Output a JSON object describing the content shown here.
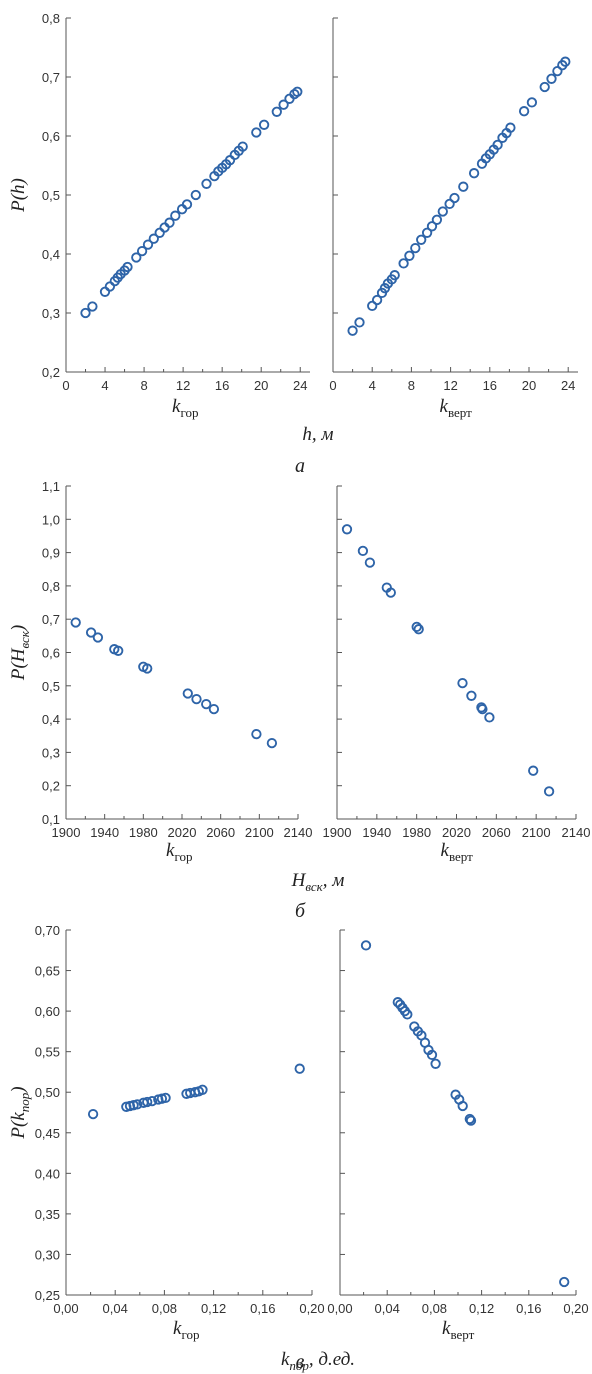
{
  "figure": {
    "tick_font_color": "#333333",
    "marker_color": "#2e64a8"
  },
  "chart_data": [
    {
      "id": "a",
      "type": "scatter",
      "panel_letter": "а",
      "ylabel": "P(h)",
      "xlabel_main": "h",
      "xlabel_unit": ", м",
      "xlabel_sub": "",
      "ylim": [
        0.2,
        0.8
      ],
      "yticks": [
        "0,2",
        "0,3",
        "0,4",
        "0,5",
        "0,6",
        "0,7",
        "0,8"
      ],
      "yticks_values": [
        0.2,
        0.3,
        0.4,
        0.5,
        0.6,
        0.7,
        0.8
      ],
      "subplots": [
        {
          "name": "left",
          "x_label_k": "k",
          "x_label_sub": "гор",
          "xlim": [
            0,
            25
          ],
          "xticks": [
            "0",
            "4",
            "8",
            "12",
            "16",
            "20",
            "24"
          ],
          "xticks_values": [
            0,
            4,
            8,
            12,
            16,
            20,
            24
          ],
          "x": [
            2.0,
            2.7,
            4.0,
            4.5,
            5.0,
            5.3,
            5.6,
            6.0,
            6.3,
            7.2,
            7.8,
            8.4,
            9.0,
            9.6,
            10.1,
            10.6,
            11.2,
            11.9,
            12.4,
            13.3,
            14.4,
            15.2,
            15.6,
            16.0,
            16.4,
            16.8,
            17.3,
            17.7,
            18.1,
            19.5,
            20.3,
            21.6,
            22.3,
            22.9,
            23.4,
            23.7
          ],
          "y": [
            0.3,
            0.311,
            0.336,
            0.345,
            0.354,
            0.36,
            0.366,
            0.372,
            0.378,
            0.394,
            0.405,
            0.416,
            0.426,
            0.436,
            0.445,
            0.453,
            0.465,
            0.476,
            0.484,
            0.5,
            0.519,
            0.532,
            0.54,
            0.546,
            0.552,
            0.559,
            0.568,
            0.575,
            0.582,
            0.606,
            0.619,
            0.641,
            0.653,
            0.663,
            0.671,
            0.675
          ]
        },
        {
          "name": "right",
          "x_label_k": "k",
          "x_label_sub": "верт",
          "xlim": [
            0,
            25
          ],
          "xticks": [
            "0",
            "4",
            "8",
            "12",
            "16",
            "20",
            "24"
          ],
          "xticks_values": [
            0,
            4,
            8,
            12,
            16,
            20,
            24
          ],
          "x": [
            2.0,
            2.7,
            4.0,
            4.5,
            5.0,
            5.3,
            5.6,
            6.0,
            6.3,
            7.2,
            7.8,
            8.4,
            9.0,
            9.6,
            10.1,
            10.6,
            11.2,
            11.9,
            12.4,
            13.3,
            14.4,
            15.2,
            15.6,
            16.0,
            16.4,
            16.8,
            17.3,
            17.7,
            18.1,
            19.5,
            20.3,
            21.6,
            22.3,
            22.9,
            23.4,
            23.7
          ],
          "y": [
            0.27,
            0.284,
            0.312,
            0.322,
            0.334,
            0.342,
            0.35,
            0.357,
            0.364,
            0.384,
            0.397,
            0.41,
            0.424,
            0.436,
            0.447,
            0.458,
            0.472,
            0.485,
            0.495,
            0.514,
            0.537,
            0.553,
            0.562,
            0.569,
            0.577,
            0.585,
            0.597,
            0.605,
            0.614,
            0.642,
            0.657,
            0.683,
            0.697,
            0.71,
            0.72,
            0.726
          ]
        }
      ]
    },
    {
      "id": "b",
      "type": "scatter",
      "panel_letter": "б",
      "ylabel": "P(H",
      "ylabel_sub": "вск",
      "ylabel_close": ")",
      "xlabel_main": "H",
      "xlabel_sub": "вск",
      "xlabel_unit": ", м",
      "ylim": [
        0.1,
        1.1
      ],
      "yticks": [
        "0,1",
        "0,2",
        "0,3",
        "0,4",
        "0,5",
        "0,6",
        "0,7",
        "0,8",
        "0,9",
        "1,0",
        "1,1"
      ],
      "yticks_values": [
        0.1,
        0.2,
        0.3,
        0.4,
        0.5,
        0.6,
        0.7,
        0.8,
        0.9,
        1.0,
        1.1
      ],
      "subplots": [
        {
          "name": "left",
          "x_label_k": "k",
          "x_label_sub": "гор",
          "xlim": [
            1900,
            2140
          ],
          "xticks": [
            "1900",
            "1940",
            "1980",
            "2020",
            "2060",
            "2100",
            "2140"
          ],
          "xticks_values": [
            1900,
            1940,
            1980,
            2020,
            2060,
            2100,
            2140
          ],
          "x": [
            1910,
            1926,
            1933,
            1950,
            1954,
            1980,
            1984,
            2026,
            2035,
            2045,
            2053,
            2097,
            2113
          ],
          "y": [
            0.69,
            0.66,
            0.645,
            0.61,
            0.605,
            0.557,
            0.552,
            0.477,
            0.46,
            0.445,
            0.43,
            0.355,
            0.328
          ]
        },
        {
          "name": "right",
          "x_label_k": "k",
          "x_label_sub": "верт",
          "xlim": [
            1900,
            2140
          ],
          "xticks": [
            "1900",
            "1940",
            "1980",
            "2020",
            "2060",
            "2100",
            "2140"
          ],
          "xticks_values": [
            1900,
            1940,
            1980,
            2020,
            2060,
            2100,
            2140
          ],
          "x": [
            1910,
            1926,
            1933,
            1950,
            1954,
            1980,
            1982,
            2026,
            2035,
            2045,
            2046,
            2053,
            2097,
            2113
          ],
          "y": [
            0.97,
            0.905,
            0.87,
            0.795,
            0.78,
            0.677,
            0.67,
            0.508,
            0.47,
            0.435,
            0.43,
            0.405,
            0.245,
            0.183
          ]
        }
      ]
    },
    {
      "id": "c",
      "type": "scatter",
      "panel_letter": "в",
      "ylabel": "P(k",
      "ylabel_sub": "пор",
      "ylabel_close": ")",
      "xlabel_main": "k",
      "xlabel_sub": "пор",
      "xlabel_unit": ", д.ед.",
      "ylim": [
        0.25,
        0.7
      ],
      "yticks": [
        "0,25",
        "0,30",
        "0,35",
        "0,40",
        "0,45",
        "0,50",
        "0,55",
        "0,60",
        "0,65",
        "0,70"
      ],
      "yticks_values": [
        0.25,
        0.3,
        0.35,
        0.4,
        0.45,
        0.5,
        0.55,
        0.6,
        0.65,
        0.7
      ],
      "subplots": [
        {
          "name": "left",
          "x_label_k": "k",
          "x_label_sub": "гор",
          "xlim": [
            0,
            0.2
          ],
          "xticks": [
            "0,00",
            "0,04",
            "0,08",
            "0,12",
            "0,16",
            "0,20"
          ],
          "xticks_values": [
            0,
            0.04,
            0.08,
            0.12,
            0.16,
            0.2
          ],
          "x": [
            0.022,
            0.049,
            0.052,
            0.055,
            0.058,
            0.063,
            0.066,
            0.07,
            0.075,
            0.078,
            0.081,
            0.098,
            0.101,
            0.105,
            0.108,
            0.111,
            0.19
          ],
          "y": [
            0.473,
            0.482,
            0.483,
            0.484,
            0.485,
            0.487,
            0.488,
            0.489,
            0.491,
            0.492,
            0.493,
            0.498,
            0.499,
            0.5,
            0.501,
            0.503,
            0.529
          ]
        },
        {
          "name": "right",
          "x_label_k": "k",
          "x_label_sub": "верт",
          "xlim": [
            0,
            0.2
          ],
          "xticks": [
            "0,00",
            "0,04",
            "0,08",
            "0,12",
            "0,16",
            "0,20"
          ],
          "xticks_values": [
            0,
            0.04,
            0.08,
            0.12,
            0.16,
            0.2
          ],
          "x": [
            0.022,
            0.049,
            0.051,
            0.053,
            0.055,
            0.057,
            0.063,
            0.066,
            0.069,
            0.072,
            0.075,
            0.078,
            0.081,
            0.098,
            0.101,
            0.104,
            0.11,
            0.111,
            0.19
          ],
          "y": [
            0.681,
            0.611,
            0.608,
            0.604,
            0.6,
            0.596,
            0.581,
            0.575,
            0.57,
            0.561,
            0.552,
            0.546,
            0.535,
            0.497,
            0.491,
            0.483,
            0.467,
            0.465,
            0.266
          ]
        }
      ]
    }
  ]
}
